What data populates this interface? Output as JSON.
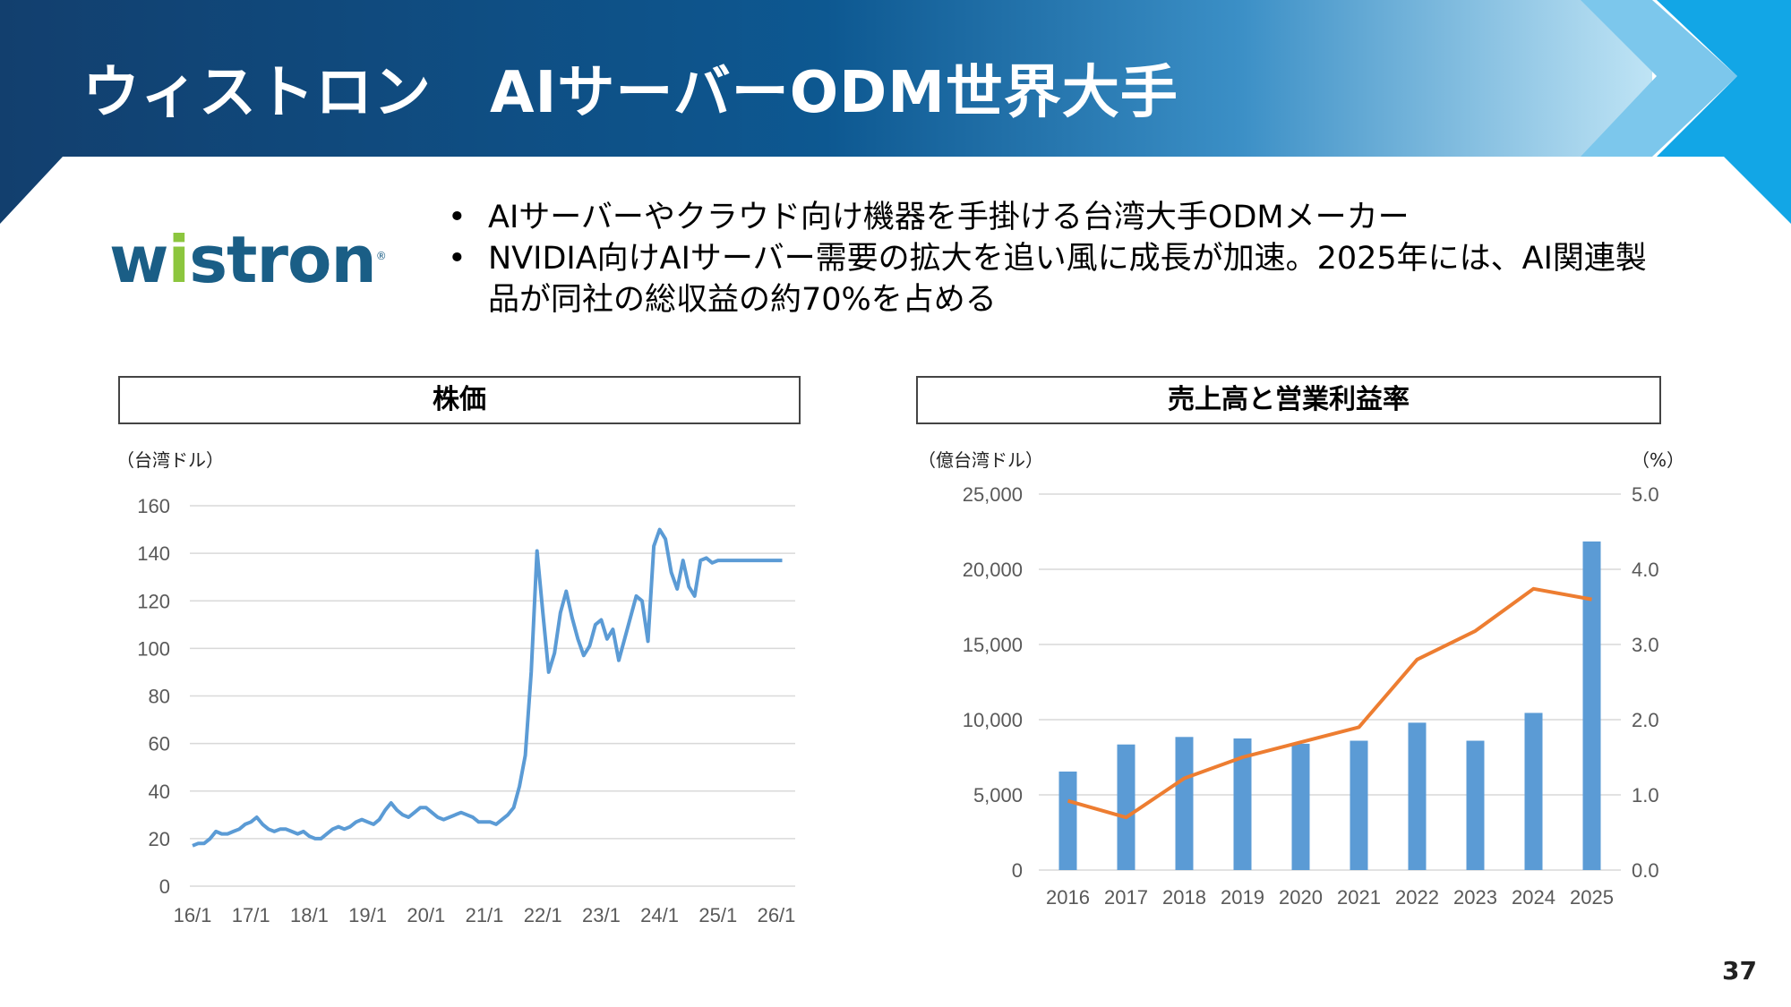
{
  "slide": {
    "title": "ウィストロン　AIサーバーODM世界大手",
    "page_number": "37",
    "colors": {
      "header_dark": "#0e3f6f",
      "header_light": "#1fa6e0",
      "bar_blue": "#5b9bd5",
      "line_orange": "#ed7d31",
      "stock_line": "#5b9bd5"
    }
  },
  "logo": {
    "text_pre": "w",
    "text_i": "i",
    "text_post": "stron",
    "mark": "®"
  },
  "bullets": [
    "AIサーバーやクラウド向け機器を手掛ける台湾大手ODMメーカー",
    "NVIDIA向けAIサーバー需要の拡大を追い風に成長が加速。2025年には、AI関連製品が同社の総収益の約70%を占める"
  ],
  "left_panel": {
    "title": "株価",
    "unit_label": "（台湾ドル）"
  },
  "right_panel": {
    "title": "売上高と営業利益率",
    "unit_left": "（億台湾ドル）",
    "unit_right": "（%）"
  },
  "chart_data": [
    {
      "type": "line",
      "title": "株価",
      "ylabel": "（台湾ドル）",
      "ylim": [
        0,
        160
      ],
      "yticks": [
        "0",
        "20",
        "40",
        "60",
        "80",
        "100",
        "120",
        "140",
        "160"
      ],
      "xticks": [
        "16/1",
        "17/1",
        "18/1",
        "19/1",
        "20/1",
        "21/1",
        "22/1",
        "23/1",
        "24/1",
        "25/1",
        "26/1"
      ],
      "grid": true,
      "color": "#5b9bd5",
      "x": [
        2016.0,
        2016.1,
        2016.2,
        2016.3,
        2016.4,
        2016.5,
        2016.6,
        2016.7,
        2016.8,
        2016.9,
        2017.0,
        2017.1,
        2017.2,
        2017.3,
        2017.4,
        2017.5,
        2017.6,
        2017.7,
        2017.8,
        2017.9,
        2018.0,
        2018.1,
        2018.2,
        2018.3,
        2018.4,
        2018.5,
        2018.6,
        2018.7,
        2018.8,
        2018.9,
        2019.0,
        2019.1,
        2019.2,
        2019.3,
        2019.4,
        2019.5,
        2019.6,
        2019.7,
        2019.8,
        2019.9,
        2020.0,
        2020.1,
        2020.2,
        2020.3,
        2020.4,
        2020.5,
        2020.6,
        2020.7,
        2020.8,
        2020.9,
        2021.0,
        2021.1,
        2021.2,
        2021.3,
        2021.4,
        2021.5,
        2021.6,
        2021.7,
        2021.8,
        2021.9,
        2022.0,
        2022.1,
        2022.2,
        2022.3,
        2022.4,
        2022.5,
        2022.6,
        2022.7,
        2022.8,
        2022.9,
        2023.0,
        2023.1,
        2023.2,
        2023.3,
        2023.4,
        2023.5,
        2023.6,
        2023.7,
        2023.8,
        2023.9,
        2024.0,
        2024.1,
        2024.2,
        2024.3,
        2024.4,
        2024.5,
        2024.6,
        2024.7,
        2024.8,
        2024.9,
        2025.0,
        2025.1,
        2025.2,
        2025.3,
        2025.4,
        2025.5,
        2025.6,
        2025.7,
        2025.8,
        2025.9,
        2026.0,
        2026.1
      ],
      "values": [
        17,
        18,
        18,
        20,
        23,
        22,
        22,
        23,
        24,
        26,
        27,
        29,
        26,
        24,
        23,
        24,
        24,
        23,
        22,
        23,
        21,
        20,
        20,
        22,
        24,
        25,
        24,
        25,
        27,
        28,
        27,
        26,
        28,
        32,
        35,
        32,
        30,
        29,
        31,
        33,
        33,
        31,
        29,
        28,
        29,
        30,
        31,
        30,
        29,
        27,
        27,
        27,
        26,
        28,
        30,
        33,
        42,
        55,
        90,
        141,
        115,
        90,
        98,
        115,
        124,
        113,
        104,
        97,
        101,
        110,
        112,
        104,
        108,
        95,
        104,
        113,
        122,
        120,
        103,
        143,
        150,
        146,
        132,
        125,
        137,
        126,
        122,
        137,
        138,
        136,
        137,
        137,
        137,
        137,
        137,
        137,
        137,
        137,
        137,
        137,
        137,
        137
      ]
    },
    {
      "type": "bar",
      "title": "売上高と営業利益率",
      "ylabel": "（億台湾ドル）",
      "ylabel_right": "（%）",
      "categories": [
        "2016",
        "2017",
        "2018",
        "2019",
        "2020",
        "2021",
        "2022",
        "2023",
        "2024",
        "2025"
      ],
      "ylim": [
        0,
        25000
      ],
      "yticks": [
        "0",
        "5,000",
        "10,000",
        "15,000",
        "20,000",
        "25,000"
      ],
      "ylim_right": [
        0,
        5
      ],
      "yticks_right": [
        "0.0",
        "1.0",
        "2.0",
        "3.0",
        "4.0",
        "5.0"
      ],
      "grid": true,
      "series": [
        {
          "type": "bar",
          "axis": "left",
          "color": "#5b9bd5",
          "values": [
            6550,
            8350,
            8850,
            8750,
            8400,
            8600,
            9800,
            8600,
            10450,
            21850
          ]
        },
        {
          "type": "line",
          "axis": "right",
          "color": "#ed7d31",
          "values": [
            0.92,
            0.7,
            1.22,
            1.5,
            1.7,
            1.9,
            2.8,
            3.18,
            3.74,
            3.6
          ]
        }
      ]
    }
  ]
}
